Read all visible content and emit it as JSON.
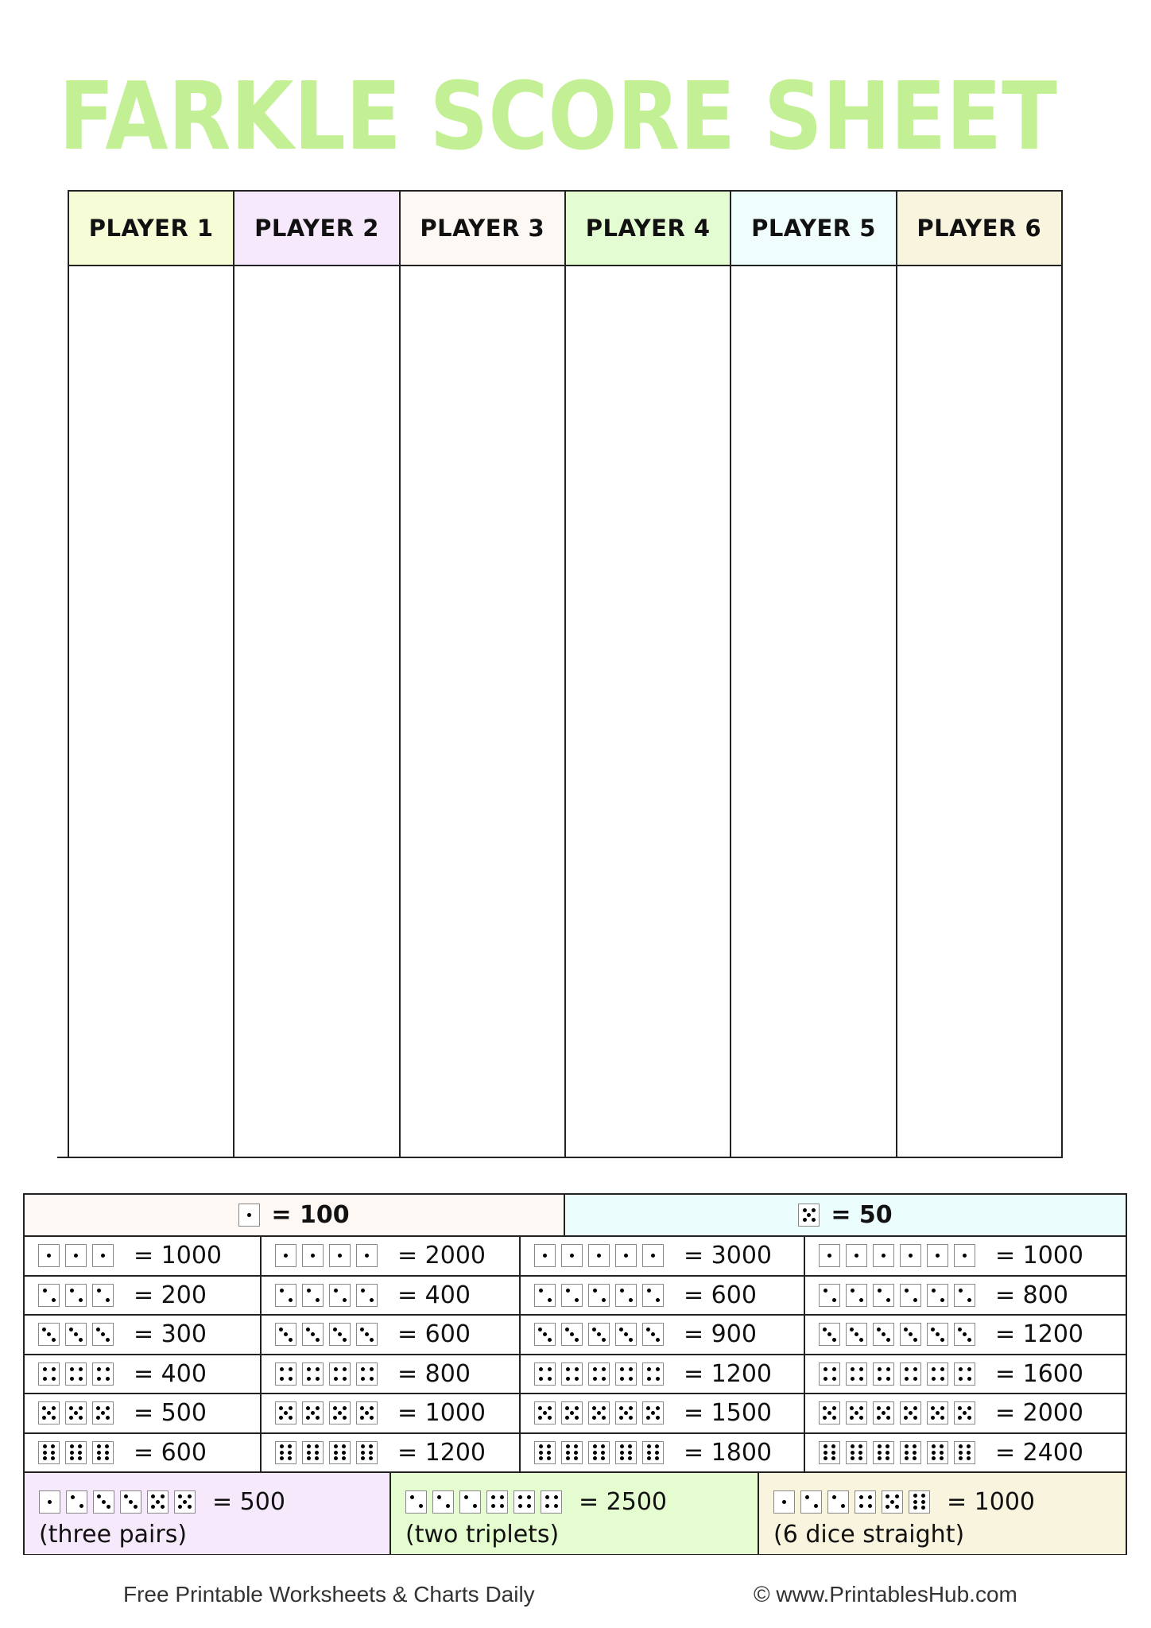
{
  "title": "FARKLE SCORE SHEET",
  "colors": {
    "title": "#c3f095",
    "border": "#222222"
  },
  "players": [
    {
      "label": "PLAYER 1",
      "color": "#f5fcd6"
    },
    {
      "label": "PLAYER 2",
      "color": "#f6e9fc"
    },
    {
      "label": "PLAYER 3",
      "color": "#fef8f4"
    },
    {
      "label": "PLAYER 4",
      "color": "#e4fcd2"
    },
    {
      "label": "PLAYER 5",
      "color": "#effdfd"
    },
    {
      "label": "PLAYER 6",
      "color": "#f8f4de"
    }
  ],
  "singles": [
    {
      "die": 1,
      "label": "= 100",
      "color": "#fef8f4"
    },
    {
      "die": 5,
      "label": "= 50",
      "color": "#ebfdfd"
    }
  ],
  "combos": [
    {
      "face": 1,
      "cells": [
        {
          "count": 3,
          "label": "= 1000"
        },
        {
          "count": 4,
          "label": "= 2000"
        },
        {
          "count": 5,
          "label": "= 3000"
        },
        {
          "count": 6,
          "label": "= 1000"
        }
      ]
    },
    {
      "face": 2,
      "cells": [
        {
          "count": 3,
          "label": "= 200"
        },
        {
          "count": 4,
          "label": "= 400"
        },
        {
          "count": 5,
          "label": "= 600"
        },
        {
          "count": 6,
          "label": "= 800"
        }
      ]
    },
    {
      "face": 3,
      "cells": [
        {
          "count": 3,
          "label": "= 300"
        },
        {
          "count": 4,
          "label": "= 600"
        },
        {
          "count": 5,
          "label": "= 900"
        },
        {
          "count": 6,
          "label": "= 1200"
        }
      ]
    },
    {
      "face": 4,
      "cells": [
        {
          "count": 3,
          "label": "= 400"
        },
        {
          "count": 4,
          "label": "= 800"
        },
        {
          "count": 5,
          "label": "= 1200"
        },
        {
          "count": 6,
          "label": "= 1600"
        }
      ]
    },
    {
      "face": 5,
      "cells": [
        {
          "count": 3,
          "label": "= 500"
        },
        {
          "count": 4,
          "label": "= 1000"
        },
        {
          "count": 5,
          "label": "= 1500"
        },
        {
          "count": 6,
          "label": "= 2000"
        }
      ]
    },
    {
      "face": 6,
      "cells": [
        {
          "count": 3,
          "label": "= 600"
        },
        {
          "count": 4,
          "label": "= 1200"
        },
        {
          "count": 5,
          "label": "= 1800"
        },
        {
          "count": 6,
          "label": "= 2400"
        }
      ]
    }
  ],
  "specials": [
    {
      "dice": [
        1,
        2,
        3,
        3,
        5,
        5
      ],
      "label": "= 500",
      "desc": "(three pairs)",
      "color": "#f6e9fc"
    },
    {
      "dice": [
        2,
        2,
        2,
        4,
        4,
        4
      ],
      "label": "= 2500",
      "desc": "(two triplets)",
      "color": "#e4fcd0"
    },
    {
      "dice": [
        1,
        2,
        2,
        4,
        5,
        6
      ],
      "label": "= 1000",
      "desc": "(6 dice straight)",
      "color": "#f8f4dd"
    }
  ],
  "footer": {
    "left": "Free Printable Worksheets & Charts Daily",
    "right": "© www.PrintablesHub.com"
  }
}
